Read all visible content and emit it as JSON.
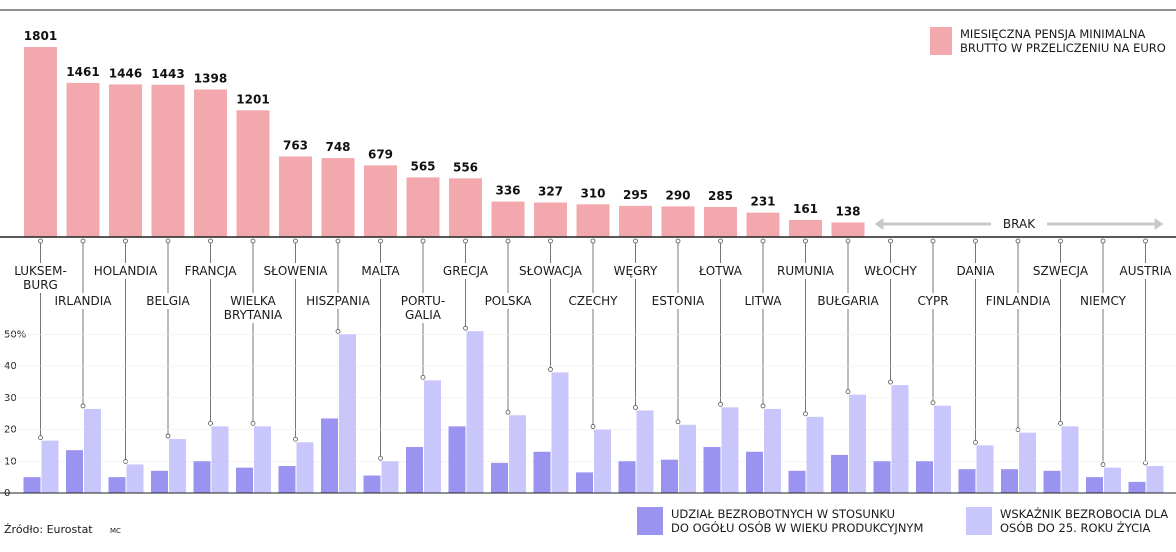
{
  "chart_data": [
    {
      "type": "bar",
      "categories": [
        "LUKSEMBURG",
        "IRLANDIA",
        "HOLANDIA",
        "BELGIA",
        "FRANCJA",
        "WIELKA BRYTANIA",
        "SŁOWENIA",
        "HISZPANIA",
        "MALTA",
        "PORTUGALIA",
        "GRECJA",
        "POLSKA",
        "SŁOWACJA",
        "CZECHY",
        "WĘGRY",
        "ESTONIA",
        "ŁOTWA",
        "LITWA",
        "RUMUNIA",
        "BUŁGARIA",
        "WŁOCHY",
        "CYPR",
        "DANIA",
        "FINLANDIA",
        "SZWECJA",
        "NIEMCY",
        "AUSTRIA"
      ],
      "series": [
        {
          "name": "MIESIĘCZNA PENSJA MINIMALNA BRUTTO W PRZELICZENIU NA EURO",
          "values": [
            1801,
            1461,
            1446,
            1443,
            1398,
            1201,
            763,
            748,
            679,
            565,
            556,
            336,
            327,
            310,
            295,
            290,
            285,
            231,
            161,
            138,
            null,
            null,
            null,
            null,
            null,
            null,
            null
          ]
        }
      ],
      "no_data_label": "BRAK",
      "color": "#f2a8ac"
    },
    {
      "type": "bar",
      "categories": [
        "LUKSEMBURG",
        "IRLANDIA",
        "HOLANDIA",
        "BELGIA",
        "FRANCJA",
        "WIELKA BRYTANIA",
        "SŁOWENIA",
        "HISZPANIA",
        "MALTA",
        "PORTUGALIA",
        "GRECJA",
        "POLSKA",
        "SŁOWACJA",
        "CZECHY",
        "WĘGRY",
        "ESTONIA",
        "ŁOTWA",
        "LITWA",
        "RUMUNIA",
        "BUŁGARIA",
        "WŁOCHY",
        "CYPR",
        "DANIA",
        "FINLANDIA",
        "SZWECJA",
        "NIEMCY",
        "AUSTRIA"
      ],
      "y_ticks": [
        "50%",
        "40",
        "30",
        "20",
        "10",
        "0"
      ],
      "ylim": [
        0,
        55
      ],
      "series": [
        {
          "name": "UDZIAŁ BEZROBOTNYCH W STOSUNKU DO OGÓŁU OSÓB W WIEKU PRODUKCYJNYM",
          "color": "#9a93f0",
          "values": [
            5,
            13.5,
            5,
            7,
            10,
            8,
            8.5,
            23.5,
            5.5,
            14.5,
            21,
            9.5,
            13,
            6.5,
            10,
            10.5,
            14.5,
            13,
            7,
            12,
            10,
            10,
            7.5,
            7.5,
            7,
            5,
            3.5
          ]
        },
        {
          "name": "WSKAŹNIK BEZROBOCIA DLA OSÓB DO 25. ROKU ŻYCIA",
          "color": "#c9c6fb",
          "values": [
            16.5,
            26.5,
            9,
            17,
            21,
            21,
            16,
            50,
            10,
            35.5,
            51,
            24.5,
            38,
            20,
            26,
            21.5,
            27,
            26.5,
            24,
            31,
            34,
            27.5,
            15,
            19,
            21,
            8,
            8.5
          ]
        }
      ]
    }
  ],
  "labels": {
    "top_row": [
      "LUKSEM-\nBURG",
      "HOLANDIA",
      "FRANCJA",
      "SŁOWENIA",
      "MALTA",
      "GRECJA",
      "SŁOWACJA",
      "WĘGRY",
      "ŁOTWA",
      "RUMUNIA",
      "WŁOCHY",
      "DANIA",
      "SZWECJA",
      "AUSTRIA"
    ],
    "second_row": [
      "IRLANDIA",
      "BELGIA",
      "WIELKA\nBRYTANIA",
      "HISZPANIA",
      "PORTU-\nGALIA",
      "POLSKA",
      "CZECHY",
      "ESTONIA",
      "LITWA",
      "BUŁGARIA",
      "CYPR",
      "FINLANDIA",
      "NIEMCY"
    ]
  },
  "legend": {
    "salary": [
      "MIESIĘCZNA PENSJA MINIMALNA",
      "BRUTTO W PRZELICZENIU NA EURO"
    ],
    "total": [
      "UDZIAŁ BEZROBOTNYCH W STOSUNKU",
      "DO OGÓŁU OSÓB W WIEKU PRODUKCYJNYM"
    ],
    "youth": [
      "WSKAŹNIK BEZROBOCIA DLA",
      "OSÓB DO 25. ROKU ŻYCIA"
    ]
  },
  "source": "Źródło: Eurostat",
  "author": "MC"
}
